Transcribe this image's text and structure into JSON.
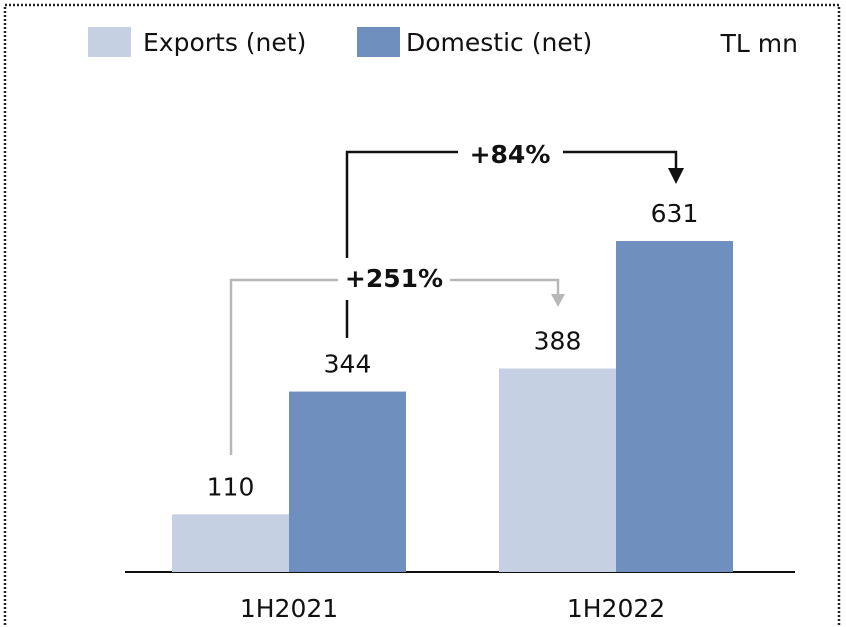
{
  "chart_data": {
    "type": "bar",
    "categories": [
      "1H2021",
      "1H2022"
    ],
    "series": [
      {
        "name": "Exports (net)",
        "color": "#c5d0e3",
        "values": [
          110,
          388
        ]
      },
      {
        "name": "Domestic (net)",
        "color": "#6f8fbf",
        "values": [
          344,
          631
        ]
      }
    ],
    "unit_label": "TL mn",
    "annotations": [
      "+84%",
      "+251%"
    ]
  }
}
